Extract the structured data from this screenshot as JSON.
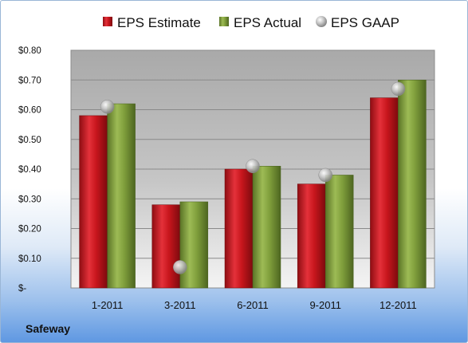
{
  "chart_data": {
    "type": "bar",
    "title": "",
    "xlabel": "",
    "ylabel": "",
    "categories": [
      "1-2011",
      "3-2011",
      "6-2011",
      "9-2011",
      "12-2011"
    ],
    "series": [
      {
        "name": "EPS Estimate",
        "kind": "bar",
        "values": [
          0.58,
          0.28,
          0.4,
          0.35,
          0.64
        ],
        "color": "#c0141a"
      },
      {
        "name": "EPS Actual",
        "kind": "bar",
        "values": [
          0.62,
          0.29,
          0.41,
          0.38,
          0.7
        ],
        "color": "#7d9b3a"
      },
      {
        "name": "EPS GAAP",
        "kind": "marker",
        "values": [
          0.61,
          0.07,
          0.41,
          0.38,
          0.67
        ],
        "color": "#a9a9a9"
      }
    ],
    "ylim": [
      0,
      0.8
    ],
    "yticks": [
      0,
      0.1,
      0.2,
      0.3,
      0.4,
      0.5,
      0.6,
      0.7,
      0.8
    ],
    "ytick_labels": [
      "$-",
      "$0.10",
      "$0.20",
      "$0.30",
      "$0.40",
      "$0.50",
      "$0.60",
      "$0.70",
      "$0.80"
    ],
    "legend_position": "top",
    "grid": true
  },
  "company": "Safeway"
}
